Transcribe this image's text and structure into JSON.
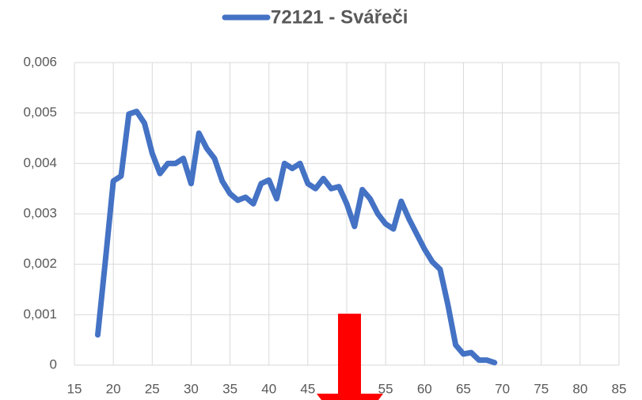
{
  "chart_data": {
    "type": "line",
    "series": [
      {
        "name": "72121 - Svářeči",
        "color": "#4472c4",
        "x": [
          18,
          19,
          20,
          21,
          22,
          23,
          24,
          25,
          26,
          27,
          28,
          29,
          30,
          31,
          32,
          33,
          34,
          35,
          36,
          37,
          38,
          39,
          40,
          41,
          42,
          43,
          44,
          45,
          46,
          47,
          48,
          49,
          50,
          51,
          52,
          53,
          54,
          55,
          56,
          57,
          58,
          59,
          60,
          61,
          62,
          63,
          64,
          65,
          66,
          67,
          68,
          69
        ],
        "values": [
          0.0006,
          0.0021,
          0.00365,
          0.00375,
          0.00498,
          0.00503,
          0.0048,
          0.0042,
          0.0038,
          0.004,
          0.004,
          0.0041,
          0.0036,
          0.0046,
          0.0043,
          0.0041,
          0.00365,
          0.0034,
          0.00327,
          0.00333,
          0.0032,
          0.0036,
          0.00367,
          0.0033,
          0.004,
          0.0039,
          0.004,
          0.0036,
          0.0035,
          0.0037,
          0.0035,
          0.00354,
          0.0032,
          0.00275,
          0.00348,
          0.0033,
          0.003,
          0.0028,
          0.0027,
          0.00325,
          0.0029,
          0.0026,
          0.0023,
          0.00205,
          0.0019,
          0.0012,
          0.0004,
          0.00022,
          0.00025,
          0.0001,
          0.0001,
          5e-05
        ]
      }
    ],
    "xlim": [
      15,
      85
    ],
    "xticks": [
      15,
      20,
      25,
      30,
      35,
      40,
      45,
      50,
      55,
      60,
      65,
      70,
      75,
      80,
      85
    ],
    "ylim": [
      0,
      0.006
    ],
    "yticks": [
      0,
      {
        "value": 0.001,
        "label": "0,001"
      },
      {
        "value": 0.002,
        "label": "0,002"
      },
      {
        "value": 0.003,
        "label": "0,003"
      },
      {
        "value": 0.004,
        "label": "0,004"
      },
      {
        "value": 0.005,
        "label": "0,005"
      },
      {
        "value": 0.006,
        "label": "0,006"
      }
    ],
    "grid": true
  }
}
